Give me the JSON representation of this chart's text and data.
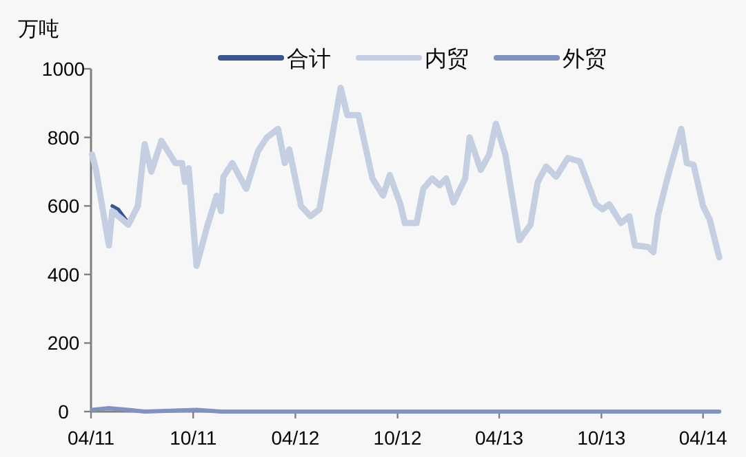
{
  "chart_data": {
    "type": "line",
    "ylabel": "万吨",
    "legend": "top",
    "marker": "none",
    "line_style": "solid",
    "xlim": [
      "2011-04-01",
      "2014-05-01"
    ],
    "xticks": [
      {
        "value": "2011-04-01",
        "label": "04/11"
      },
      {
        "value": "2011-10-01",
        "label": "10/11"
      },
      {
        "value": "2012-04-01",
        "label": "04/12"
      },
      {
        "value": "2012-10-01",
        "label": "10/12"
      },
      {
        "value": "2013-04-01",
        "label": "04/13"
      },
      {
        "value": "2013-10-01",
        "label": "10/13"
      },
      {
        "value": "2014-04-01",
        "label": "04/14"
      }
    ],
    "ylim": [
      0,
      1000
    ],
    "yticks": [
      0,
      200,
      400,
      600,
      800,
      1000
    ],
    "series": [
      {
        "name": "合计",
        "color": "#3b5591",
        "x": [
          "2011-05-09",
          "2011-05-20",
          "2011-06-07"
        ],
        "values": [
          600,
          590,
          550
        ]
      },
      {
        "name": "内贸",
        "color": "#c5cfe2",
        "x": [
          "2011-04-03",
          "2011-04-10",
          "2011-05-03",
          "2011-05-09",
          "2011-06-07",
          "2011-06-24",
          "2011-07-06",
          "2011-07-18",
          "2011-08-05",
          "2011-08-30",
          "2011-09-11",
          "2011-09-16",
          "2011-09-23",
          "2011-10-07",
          "2011-10-26",
          "2011-11-12",
          "2011-11-20",
          "2011-11-24",
          "2011-12-10",
          "2012-01-04",
          "2012-01-25",
          "2012-02-10",
          "2012-03-01",
          "2012-03-13",
          "2012-03-21",
          "2012-04-11",
          "2012-04-28",
          "2012-05-14",
          "2012-06-04",
          "2012-06-21",
          "2012-07-03",
          "2012-07-23",
          "2012-08-17",
          "2012-09-05",
          "2012-09-17",
          "2012-10-06",
          "2012-10-14",
          "2012-11-04",
          "2012-11-16",
          "2012-12-02",
          "2012-12-15",
          "2012-12-27",
          "2013-01-09",
          "2013-01-30",
          "2013-02-07",
          "2013-02-27",
          "2013-03-14",
          "2013-03-26",
          "2013-04-12",
          "2013-05-07",
          "2013-05-27",
          "2013-06-09",
          "2013-06-24",
          "2013-07-12",
          "2013-08-02",
          "2013-08-23",
          "2013-09-21",
          "2013-10-03",
          "2013-10-15",
          "2013-11-05",
          "2013-11-20",
          "2013-11-30",
          "2013-12-24",
          "2014-01-02",
          "2014-01-10",
          "2014-01-27",
          "2014-02-21",
          "2014-03-03",
          "2014-03-15",
          "2014-04-01",
          "2014-04-13",
          "2014-04-30"
        ],
        "values": [
          750,
          705,
          485,
          585,
          545,
          600,
          780,
          700,
          790,
          725,
          725,
          670,
          710,
          425,
          540,
          630,
          585,
          685,
          725,
          650,
          760,
          800,
          825,
          725,
          765,
          600,
          570,
          590,
          785,
          945,
          865,
          865,
          680,
          630,
          690,
          605,
          550,
          550,
          650,
          680,
          660,
          680,
          610,
          680,
          800,
          705,
          750,
          840,
          750,
          500,
          545,
          670,
          715,
          685,
          740,
          730,
          605,
          590,
          605,
          550,
          570,
          485,
          480,
          465,
          570,
          680,
          825,
          725,
          720,
          600,
          560,
          450
        ]
      },
      {
        "name": "外贸",
        "color": "#8092c0",
        "x": [
          "2011-04-03",
          "2011-05-03",
          "2011-06-07",
          "2011-07-06",
          "2011-10-07",
          "2011-11-20",
          "2014-04-30"
        ],
        "values": [
          5,
          10,
          5,
          0,
          5,
          0,
          0
        ]
      }
    ]
  }
}
